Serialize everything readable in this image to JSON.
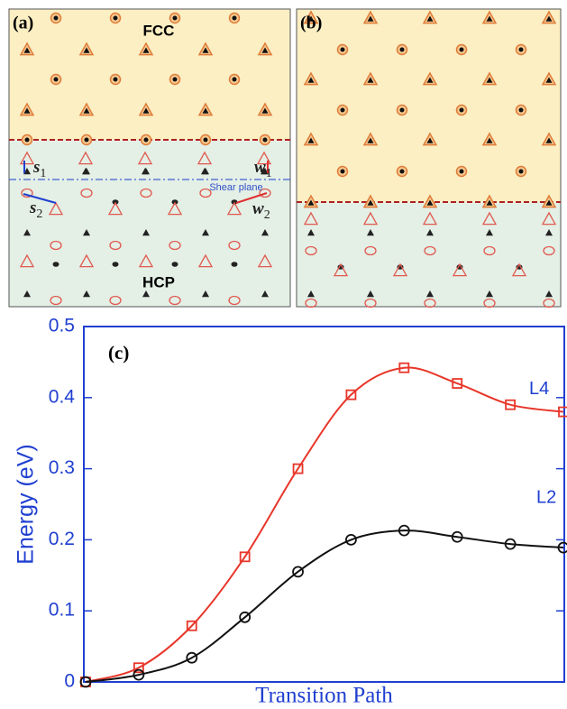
{
  "panel_a": {
    "label": "(a)",
    "upper_phase": "FCC",
    "lower_phase": "HCP",
    "plane_label": "Shear plane",
    "vectors": [
      {
        "symbol": "s",
        "index": "1"
      },
      {
        "symbol": "s",
        "index": "2"
      },
      {
        "symbol": "w",
        "index": "1"
      },
      {
        "symbol": "w",
        "index": "2"
      }
    ]
  },
  "panel_b": {
    "label": "(b)"
  },
  "chart_data": {
    "type": "line",
    "title": "(c)",
    "x_label": "Transition Path",
    "y_label": "Energy (eV)",
    "categories": [
      null,
      null,
      null,
      null,
      null,
      null,
      null,
      null,
      null,
      null
    ],
    "ylim": [
      0,
      0.5
    ],
    "yticks": [
      0,
      0.1,
      0.2,
      0.3,
      0.4,
      0.5
    ],
    "axis_color": "#1f3fd0",
    "series": [
      {
        "name": "L4",
        "color": "#e8362a",
        "marker": "square",
        "values": [
          0,
          0.02,
          0.079,
          0.176,
          0.3,
          0.404,
          0.442,
          0.42,
          0.39,
          0.38
        ]
      },
      {
        "name": "L2",
        "color": "#111111",
        "marker": "circle",
        "values": [
          0,
          0.01,
          0.034,
          0.091,
          0.155,
          0.2,
          0.213,
          0.204,
          0.194,
          0.189
        ]
      }
    ]
  }
}
